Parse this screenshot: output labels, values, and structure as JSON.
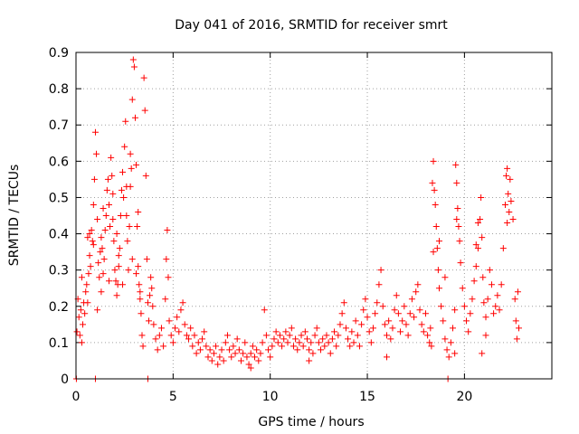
{
  "chart_data": {
    "type": "scatter",
    "title": "Day 041 of 2016, SRMTID for receiver smrt",
    "xlabel": "GPS time / hours",
    "ylabel": "SRMTID / TECUs",
    "xlim": [
      0,
      24.5
    ],
    "ylim": [
      0,
      0.9
    ],
    "xticks": [
      0,
      5,
      10,
      15,
      20
    ],
    "xtick_labels": [
      "0",
      "5",
      "10",
      "15",
      "20"
    ],
    "yticks": [
      0,
      0.1,
      0.2,
      0.3,
      0.4,
      0.5,
      0.6,
      0.7,
      0.8,
      0.9
    ],
    "ytick_labels": [
      "0",
      "0.1",
      "0.2",
      "0.3",
      "0.4",
      "0.5",
      "0.6",
      "0.7",
      "0.8",
      "0.9"
    ],
    "grid": true,
    "marker": "+",
    "color": "#ff0000",
    "series": [
      {
        "name": "SRMTID",
        "points": [
          [
            0.02,
            0.0
          ],
          [
            0.05,
            0.13
          ],
          [
            0.1,
            0.22
          ],
          [
            0.15,
            0.17
          ],
          [
            0.2,
            0.12
          ],
          [
            0.25,
            0.19
          ],
          [
            0.3,
            0.1
          ],
          [
            0.35,
            0.15
          ],
          [
            0.4,
            0.21
          ],
          [
            0.45,
            0.18
          ],
          [
            0.5,
            0.24
          ],
          [
            0.55,
            0.26
          ],
          [
            0.6,
            0.21
          ],
          [
            0.65,
            0.29
          ],
          [
            0.7,
            0.34
          ],
          [
            0.75,
            0.31
          ],
          [
            0.8,
            0.41
          ],
          [
            0.85,
            0.38
          ],
          [
            0.9,
            0.48
          ],
          [
            0.95,
            0.55
          ],
          [
            1.0,
            0.68
          ],
          [
            1.05,
            0.62
          ],
          [
            1.1,
            0.44
          ],
          [
            1.15,
            0.32
          ],
          [
            1.2,
            0.28
          ],
          [
            1.25,
            0.35
          ],
          [
            1.3,
            0.39
          ],
          [
            1.35,
            0.36
          ],
          [
            1.4,
            0.29
          ],
          [
            1.45,
            0.33
          ],
          [
            1.5,
            0.41
          ],
          [
            1.55,
            0.45
          ],
          [
            1.6,
            0.52
          ],
          [
            1.65,
            0.55
          ],
          [
            1.7,
            0.48
          ],
          [
            1.75,
            0.42
          ],
          [
            1.8,
            0.61
          ],
          [
            1.85,
            0.56
          ],
          [
            1.9,
            0.51
          ],
          [
            1.95,
            0.38
          ],
          [
            2.0,
            0.3
          ],
          [
            2.05,
            0.27
          ],
          [
            2.1,
            0.23
          ],
          [
            2.15,
            0.26
          ],
          [
            2.2,
            0.31
          ],
          [
            2.25,
            0.36
          ],
          [
            2.3,
            0.45
          ],
          [
            2.35,
            0.52
          ],
          [
            2.4,
            0.57
          ],
          [
            2.45,
            0.5
          ],
          [
            2.5,
            0.64
          ],
          [
            2.55,
            0.71
          ],
          [
            2.6,
            0.45
          ],
          [
            2.65,
            0.38
          ],
          [
            2.7,
            0.3
          ],
          [
            2.75,
            0.42
          ],
          [
            2.8,
            0.53
          ],
          [
            2.85,
            0.58
          ],
          [
            2.9,
            0.77
          ],
          [
            2.95,
            0.88
          ],
          [
            3.0,
            0.86
          ],
          [
            3.05,
            0.72
          ],
          [
            3.1,
            0.59
          ],
          [
            3.15,
            0.42
          ],
          [
            3.2,
            0.31
          ],
          [
            3.25,
            0.26
          ],
          [
            3.3,
            0.22
          ],
          [
            3.35,
            0.18
          ],
          [
            3.4,
            0.12
          ],
          [
            3.45,
            0.09
          ],
          [
            3.5,
            0.83
          ],
          [
            3.55,
            0.74
          ],
          [
            3.6,
            0.56
          ],
          [
            3.65,
            0.33
          ],
          [
            3.7,
            0.21
          ],
          [
            3.75,
            0.16
          ],
          [
            3.8,
            0.23
          ],
          [
            3.85,
            0.28
          ],
          [
            3.9,
            0.25
          ],
          [
            3.95,
            0.2
          ],
          [
            1.1,
            0.19
          ],
          [
            1.3,
            0.24
          ],
          [
            1.7,
            0.27
          ],
          [
            2.2,
            0.34
          ],
          [
            2.4,
            0.26
          ],
          [
            2.9,
            0.33
          ],
          [
            3.1,
            0.29
          ],
          [
            3.3,
            0.24
          ],
          [
            1.0,
            0.0
          ],
          [
            3.7,
            0.0
          ],
          [
            0.6,
            0.39
          ],
          [
            0.9,
            0.37
          ],
          [
            1.4,
            0.47
          ],
          [
            1.9,
            0.44
          ],
          [
            2.1,
            0.4
          ],
          [
            2.6,
            0.53
          ],
          [
            2.8,
            0.62
          ],
          [
            3.2,
            0.46
          ],
          [
            0.3,
            0.28
          ],
          [
            0.7,
            0.4
          ],
          [
            4.0,
            0.15
          ],
          [
            4.1,
            0.11
          ],
          [
            4.2,
            0.08
          ],
          [
            4.3,
            0.12
          ],
          [
            4.4,
            0.14
          ],
          [
            4.5,
            0.09
          ],
          [
            4.6,
            0.22
          ],
          [
            4.65,
            0.33
          ],
          [
            4.7,
            0.41
          ],
          [
            4.75,
            0.28
          ],
          [
            4.8,
            0.16
          ],
          [
            4.9,
            0.12
          ],
          [
            5.0,
            0.1
          ],
          [
            5.1,
            0.14
          ],
          [
            5.2,
            0.17
          ],
          [
            5.3,
            0.13
          ],
          [
            5.4,
            0.19
          ],
          [
            5.5,
            0.21
          ],
          [
            5.6,
            0.15
          ],
          [
            5.7,
            0.12
          ],
          [
            5.8,
            0.11
          ],
          [
            5.9,
            0.14
          ],
          [
            6.0,
            0.09
          ],
          [
            6.1,
            0.12
          ],
          [
            6.2,
            0.07
          ],
          [
            6.3,
            0.1
          ],
          [
            6.4,
            0.08
          ],
          [
            6.5,
            0.11
          ],
          [
            6.6,
            0.13
          ],
          [
            6.7,
            0.09
          ],
          [
            6.8,
            0.06
          ],
          [
            6.9,
            0.08
          ],
          [
            7.0,
            0.05
          ],
          [
            7.1,
            0.07
          ],
          [
            7.2,
            0.09
          ],
          [
            7.3,
            0.04
          ],
          [
            7.4,
            0.06
          ],
          [
            7.5,
            0.08
          ],
          [
            7.6,
            0.05
          ],
          [
            7.7,
            0.1
          ],
          [
            7.8,
            0.12
          ],
          [
            7.9,
            0.08
          ],
          [
            8.0,
            0.06
          ],
          [
            8.1,
            0.09
          ],
          [
            8.2,
            0.07
          ],
          [
            8.3,
            0.11
          ],
          [
            8.4,
            0.08
          ],
          [
            8.5,
            0.05
          ],
          [
            8.6,
            0.07
          ],
          [
            8.7,
            0.1
          ],
          [
            8.8,
            0.06
          ],
          [
            8.9,
            0.04
          ],
          [
            9.0,
            0.07
          ],
          [
            9.1,
            0.09
          ],
          [
            9.2,
            0.06
          ],
          [
            9.3,
            0.08
          ],
          [
            9.4,
            0.05
          ],
          [
            9.5,
            0.07
          ],
          [
            9.6,
            0.1
          ],
          [
            9.7,
            0.19
          ],
          [
            9.8,
            0.12
          ],
          [
            9.9,
            0.08
          ],
          [
            10.0,
            0.06
          ],
          [
            10.1,
            0.09
          ],
          [
            10.2,
            0.11
          ],
          [
            10.3,
            0.13
          ],
          [
            10.4,
            0.1
          ],
          [
            10.5,
            0.12
          ],
          [
            10.6,
            0.09
          ],
          [
            10.7,
            0.11
          ],
          [
            10.8,
            0.13
          ],
          [
            10.9,
            0.1
          ],
          [
            11.0,
            0.12
          ],
          [
            11.1,
            0.14
          ],
          [
            11.2,
            0.09
          ],
          [
            11.3,
            0.11
          ],
          [
            11.4,
            0.08
          ],
          [
            11.5,
            0.1
          ],
          [
            11.6,
            0.12
          ],
          [
            11.7,
            0.09
          ],
          [
            11.8,
            0.13
          ],
          [
            11.9,
            0.11
          ],
          [
            12.0,
            0.08
          ],
          [
            12.1,
            0.1
          ],
          [
            12.2,
            0.07
          ],
          [
            12.3,
            0.12
          ],
          [
            12.4,
            0.14
          ],
          [
            12.5,
            0.1
          ],
          [
            12.6,
            0.08
          ],
          [
            12.7,
            0.11
          ],
          [
            12.8,
            0.09
          ],
          [
            12.9,
            0.12
          ],
          [
            13.0,
            0.1
          ],
          [
            13.1,
            0.07
          ],
          [
            13.2,
            0.11
          ],
          [
            13.3,
            0.13
          ],
          [
            13.4,
            0.09
          ],
          [
            13.5,
            0.12
          ],
          [
            13.6,
            0.15
          ],
          [
            13.7,
            0.18
          ],
          [
            13.8,
            0.21
          ],
          [
            13.9,
            0.14
          ],
          [
            14.0,
            0.11
          ],
          [
            14.1,
            0.09
          ],
          [
            14.2,
            0.13
          ],
          [
            14.3,
            0.1
          ],
          [
            14.4,
            0.16
          ],
          [
            14.5,
            0.12
          ],
          [
            14.6,
            0.09
          ],
          [
            14.7,
            0.15
          ],
          [
            14.8,
            0.19
          ],
          [
            14.9,
            0.22
          ],
          [
            15.0,
            0.17
          ],
          [
            15.1,
            0.13
          ],
          [
            15.2,
            0.1
          ],
          [
            15.3,
            0.14
          ],
          [
            15.4,
            0.18
          ],
          [
            15.5,
            0.21
          ],
          [
            15.6,
            0.26
          ],
          [
            15.7,
            0.3
          ],
          [
            15.8,
            0.2
          ],
          [
            15.9,
            0.15
          ],
          [
            16.0,
            0.12
          ],
          [
            16.1,
            0.16
          ],
          [
            16.2,
            0.11
          ],
          [
            16.3,
            0.14
          ],
          [
            16.4,
            0.19
          ],
          [
            16.5,
            0.23
          ],
          [
            16.6,
            0.18
          ],
          [
            16.7,
            0.13
          ],
          [
            16.8,
            0.16
          ],
          [
            16.9,
            0.2
          ],
          [
            17.0,
            0.15
          ],
          [
            17.1,
            0.12
          ],
          [
            17.2,
            0.18
          ],
          [
            17.3,
            0.22
          ],
          [
            17.4,
            0.17
          ],
          [
            17.5,
            0.24
          ],
          [
            17.6,
            0.26
          ],
          [
            17.7,
            0.19
          ],
          [
            17.8,
            0.15
          ],
          [
            17.9,
            0.13
          ],
          [
            18.0,
            0.18
          ],
          [
            18.1,
            0.12
          ],
          [
            18.2,
            0.1
          ],
          [
            18.25,
            0.14
          ],
          [
            18.3,
            0.09
          ],
          [
            18.35,
            0.54
          ],
          [
            18.4,
            0.6
          ],
          [
            18.45,
            0.52
          ],
          [
            18.5,
            0.48
          ],
          [
            18.55,
            0.42
          ],
          [
            18.6,
            0.36
          ],
          [
            18.65,
            0.3
          ],
          [
            18.7,
            0.25
          ],
          [
            18.8,
            0.2
          ],
          [
            18.9,
            0.16
          ],
          [
            19.0,
            0.11
          ],
          [
            19.1,
            0.08
          ],
          [
            19.15,
            0.0
          ],
          [
            19.2,
            0.06
          ],
          [
            19.3,
            0.1
          ],
          [
            19.4,
            0.14
          ],
          [
            19.5,
            0.19
          ],
          [
            19.55,
            0.59
          ],
          [
            19.6,
            0.54
          ],
          [
            19.65,
            0.47
          ],
          [
            19.7,
            0.42
          ],
          [
            19.75,
            0.38
          ],
          [
            19.8,
            0.32
          ],
          [
            19.9,
            0.25
          ],
          [
            20.0,
            0.2
          ],
          [
            20.1,
            0.16
          ],
          [
            20.2,
            0.13
          ],
          [
            20.3,
            0.18
          ],
          [
            20.4,
            0.22
          ],
          [
            20.5,
            0.27
          ],
          [
            20.6,
            0.31
          ],
          [
            20.7,
            0.36
          ],
          [
            20.8,
            0.44
          ],
          [
            20.85,
            0.5
          ],
          [
            20.9,
            0.39
          ],
          [
            20.95,
            0.28
          ],
          [
            21.0,
            0.21
          ],
          [
            21.1,
            0.17
          ],
          [
            21.2,
            0.22
          ],
          [
            21.3,
            0.3
          ],
          [
            21.4,
            0.26
          ],
          [
            21.5,
            0.18
          ],
          [
            21.6,
            0.2
          ],
          [
            21.7,
            0.23
          ],
          [
            21.8,
            0.19
          ],
          [
            21.9,
            0.26
          ],
          [
            22.0,
            0.36
          ],
          [
            22.1,
            0.48
          ],
          [
            22.15,
            0.56
          ],
          [
            22.2,
            0.58
          ],
          [
            22.25,
            0.51
          ],
          [
            22.3,
            0.46
          ],
          [
            22.35,
            0.55
          ],
          [
            22.4,
            0.49
          ],
          [
            22.5,
            0.44
          ],
          [
            22.6,
            0.22
          ],
          [
            22.65,
            0.16
          ],
          [
            22.7,
            0.11
          ],
          [
            22.75,
            0.24
          ],
          [
            22.8,
            0.14
          ],
          [
            18.4,
            0.35
          ],
          [
            19.6,
            0.44
          ],
          [
            22.2,
            0.43
          ],
          [
            20.7,
            0.43
          ],
          [
            20.6,
            0.37
          ],
          [
            21.1,
            0.12
          ],
          [
            20.9,
            0.07
          ],
          [
            19.0,
            0.28
          ],
          [
            19.5,
            0.07
          ],
          [
            18.7,
            0.38
          ],
          [
            16.0,
            0.06
          ],
          [
            12.0,
            0.05
          ],
          [
            9.0,
            0.03
          ]
        ]
      }
    ]
  }
}
